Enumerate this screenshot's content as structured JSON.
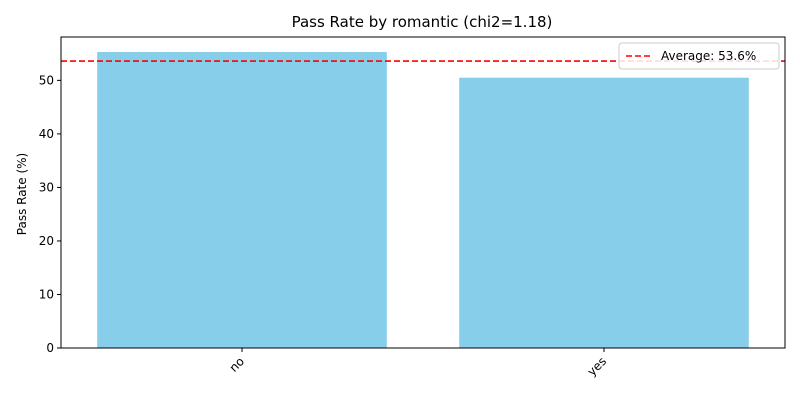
{
  "chart_data": {
    "type": "bar",
    "title": "Pass Rate by romantic (chi2=1.18)",
    "xlabel": "",
    "ylabel": "Pass Rate (%)",
    "categories": [
      "no",
      "yes"
    ],
    "values": [
      55.3,
      50.5
    ],
    "ylim": [
      0,
      58.1
    ],
    "yticks": [
      0,
      10,
      20,
      30,
      40,
      50
    ],
    "bar_color": "#87CEEB",
    "reference_line": {
      "value": 53.6,
      "label": "Average: 53.6%",
      "color": "#FF0000",
      "style": "dashed"
    },
    "legend": {
      "position": "top-right",
      "entries": [
        "Average: 53.6%"
      ]
    },
    "grid": false,
    "xtick_rotation": 45
  }
}
